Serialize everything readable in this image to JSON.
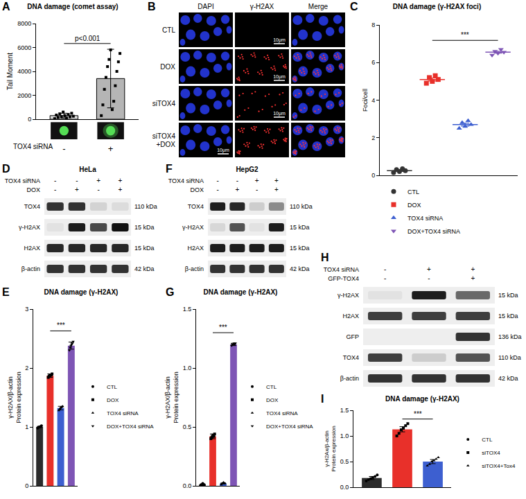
{
  "chart_data": [
    {
      "panel": "A",
      "type": "bar",
      "title": "DNA damage (comet assay)",
      "ylabel": "Tail Moment",
      "x_label": "TOX4 siRNA",
      "categories": [
        "-",
        "+"
      ],
      "values": [
        300,
        3400
      ],
      "errors": [
        200,
        2450
      ],
      "points": [
        [
          50,
          100,
          150,
          200,
          220,
          250,
          300,
          350,
          400,
          450,
          500,
          600
        ],
        [
          300,
          800,
          1200,
          1500,
          2500,
          2800,
          3500,
          4000,
          4400,
          4800,
          5000,
          5500,
          5800
        ]
      ],
      "colors": [
        "#d9d9d9",
        "#b5b5b5"
      ],
      "marker": "square",
      "ylim": [
        0,
        8000
      ],
      "yticks": [
        0,
        2000,
        4000,
        6000,
        8000
      ],
      "grid": false,
      "annotations": [
        {
          "text": "p<0.001",
          "from": "-",
          "to": "+"
        }
      ]
    },
    {
      "panel": "C",
      "type": "scatter",
      "title": "DNA damage (γ-H2AX foci)",
      "ylabel": "Foci/cell",
      "ylim": [
        0,
        8
      ],
      "yticks": [
        0,
        2,
        4,
        6,
        8
      ],
      "tick_labels": "y",
      "grid": false,
      "legend": "bottom left",
      "series": [
        {
          "name": "CTL",
          "color": "#333333",
          "marker": "circle",
          "values": [
            0.15,
            0.2,
            0.25,
            0.3,
            0.35
          ],
          "mean": 0.25,
          "error": 0.04
        },
        {
          "name": "DOX",
          "color": "#e8302a",
          "marker": "square",
          "values": [
            4.9,
            5.0,
            5.1,
            5.2,
            5.3
          ],
          "mean": 5.1,
          "error": 0.08
        },
        {
          "name": "TOX4 siRNA",
          "color": "#3d5fd0",
          "marker": "triangle-up",
          "values": [
            2.5,
            2.6,
            2.7,
            2.8,
            2.9
          ],
          "mean": 2.7,
          "error": 0.08
        },
        {
          "name": "DOX+TOX4 siRNA",
          "color": "#7e55b5",
          "marker": "triangle-down",
          "values": [
            6.4,
            6.5,
            6.55,
            6.6,
            6.7
          ],
          "mean": 6.55,
          "error": 0.05
        }
      ],
      "annotations": [
        {
          "text": "***",
          "from": "DOX",
          "to": "DOX+TOX4 siRNA"
        }
      ]
    },
    {
      "panel": "E",
      "type": "bar",
      "title": "DNA damage (γ-H2AX)",
      "ylabel": [
        "γ-H2AX/β-actin",
        "Protein expression"
      ],
      "ylim": [
        0,
        3
      ],
      "yticks": [
        0,
        1,
        2,
        3
      ],
      "tick_labels": "y",
      "grid": false,
      "legend": "right",
      "series": [
        {
          "name": "CTL",
          "color": "#2b2b2b",
          "marker": "circle",
          "value": 1.0,
          "error": 0.01,
          "points": [
            0.98,
            0.99,
            1.0,
            1.0,
            1.01,
            1.02
          ]
        },
        {
          "name": "DOX",
          "color": "#e8302a",
          "marker": "square",
          "value": 1.87,
          "error": 0.03,
          "points": [
            1.84,
            1.86,
            1.87,
            1.88,
            1.88,
            1.9
          ]
        },
        {
          "name": "TOX4 siRNA",
          "color": "#3d5fd0",
          "marker": "triangle-up",
          "value": 1.32,
          "error": 0.03,
          "points": [
            1.28,
            1.3,
            1.32,
            1.33,
            1.34,
            1.35
          ]
        },
        {
          "name": "DOX+TOX4 siRNA",
          "color": "#7e55b5",
          "marker": "triangle-down",
          "value": 2.38,
          "error": 0.06,
          "points": [
            2.3,
            2.35,
            2.38,
            2.4,
            2.42,
            2.45
          ]
        }
      ],
      "annotations": [
        {
          "text": "***",
          "from": "DOX",
          "to": "DOX+TOX4 siRNA"
        }
      ]
    },
    {
      "panel": "G",
      "type": "bar",
      "title": "DNA damage (γ-H2AX)",
      "ylabel": [
        "γ-H2AX/β-actin",
        "Protein expression"
      ],
      "ylim": [
        0,
        1.5
      ],
      "yticks": [
        {
          "value": 0,
          "label": "0.0"
        },
        0.5,
        {
          "value": 1,
          "label": "1.0"
        },
        1.5
      ],
      "tick_labels": "y",
      "grid": false,
      "legend": "right",
      "series": [
        {
          "name": "CTL",
          "color": "#2b2b2b",
          "marker": "circle",
          "value": 0.01,
          "error": 0.003,
          "points": [
            0,
            0.01,
            0.01,
            0.02,
            0.01,
            0.01
          ]
        },
        {
          "name": "DOX",
          "color": "#e8302a",
          "marker": "square",
          "value": 0.42,
          "error": 0.02,
          "points": [
            0.4,
            0.41,
            0.42,
            0.43,
            0.42,
            0.44
          ]
        },
        {
          "name": "TOX4 siRNA",
          "color": "#3d5fd0",
          "marker": "triangle-up",
          "value": 0.02,
          "error": 0.003,
          "points": [
            0.01,
            0.02,
            0.02,
            0.03,
            0.02,
            0.02
          ]
        },
        {
          "name": "DOX+TOX4 siRNA",
          "color": "#7e55b5",
          "marker": "triangle-down",
          "value": 1.2,
          "error": 0.01,
          "points": [
            1.19,
            1.2,
            1.2,
            1.21,
            1.2,
            1.21
          ]
        }
      ],
      "annotations": [
        {
          "text": "***",
          "from": "DOX",
          "to": "DOX+TOX4 siRNA"
        }
      ]
    },
    {
      "panel": "I",
      "type": "bar",
      "title": "DNA damage (γ-H2AX)",
      "ylabel": [
        "γ-H2Ax/β-actin",
        "Protein expression"
      ],
      "ylim": [
        0,
        1.5
      ],
      "yticks": [
        {
          "value": 0,
          "label": "0.0"
        },
        0.5,
        {
          "value": 1,
          "label": "1.0"
        },
        1.5
      ],
      "tick_labels": "y",
      "grid": false,
      "legend": "right",
      "series": [
        {
          "name": "CTL",
          "color": "#2b2b2b",
          "marker": "circle",
          "value": 0.18,
          "error": 0.03,
          "points": [
            0.12,
            0.15,
            0.17,
            0.19,
            0.21,
            0.24
          ]
        },
        {
          "name": "siTOX4",
          "color": "#e8302a",
          "marker": "square",
          "value": 1.13,
          "error": 0.05,
          "points": [
            1.0,
            1.05,
            1.12,
            1.15,
            1.2,
            1.24
          ]
        },
        {
          "name": "siTOX4+Tox4",
          "color": "#3d5fd0",
          "marker": "triangle-up",
          "value": 0.5,
          "error": 0.04,
          "points": [
            0.42,
            0.45,
            0.5,
            0.52,
            0.55,
            0.58
          ]
        }
      ],
      "annotations": [
        {
          "text": "***",
          "from": "siTOX4",
          "to": "siTOX4+Tox4"
        }
      ]
    }
  ],
  "images": {
    "panel": "B",
    "columns": [
      "DAPI",
      "γ-H2AX",
      "Merge"
    ],
    "rows": [
      "CTL",
      "DOX",
      "siTOX4",
      "siTOX4 +DOX"
    ],
    "scale_bar": "10μm"
  },
  "blots": [
    {
      "panel": "D",
      "title": "HeLa",
      "conditions": [
        {
          "label": "TOX4 siRNA",
          "signs": [
            "-",
            "-",
            "+",
            "+"
          ]
        },
        {
          "label": "DOX",
          "signs": [
            "-",
            "+",
            "-",
            "+"
          ]
        }
      ],
      "bands": [
        {
          "name": "TOX4",
          "size": "110 kDa",
          "intensity": [
            0.85,
            0.85,
            0.12,
            0.08
          ]
        },
        {
          "name": "γ-H2AX",
          "size": "15 kDa",
          "intensity": [
            0.05,
            0.95,
            0.75,
            1.0
          ]
        },
        {
          "name": "H2AX",
          "size": "15 kDa",
          "intensity": [
            0.9,
            0.9,
            0.9,
            0.9
          ]
        },
        {
          "name": "β-actin",
          "size": "42 kDa",
          "intensity": [
            0.85,
            0.85,
            0.85,
            0.85
          ]
        }
      ]
    },
    {
      "panel": "F",
      "title": "HepG2",
      "conditions": [
        {
          "label": "TOX4 siRNA",
          "signs": [
            "-",
            "-",
            "+",
            "+"
          ]
        },
        {
          "label": "DOX",
          "signs": [
            "-",
            "+",
            "-",
            "+"
          ]
        }
      ],
      "bands": [
        {
          "name": "TOX4",
          "size": "110 kDa",
          "intensity": [
            0.95,
            0.9,
            0.15,
            0.45
          ]
        },
        {
          "name": "γ-H2AX",
          "size": "15 kDa",
          "intensity": [
            0.1,
            0.7,
            0.05,
            0.95
          ]
        },
        {
          "name": "H2AX",
          "size": "15 kDa",
          "intensity": [
            0.95,
            0.95,
            0.95,
            0.95
          ]
        },
        {
          "name": "β-actin",
          "size": "42 kDa",
          "intensity": [
            0.85,
            0.85,
            0.85,
            0.85
          ]
        }
      ]
    },
    {
      "panel": "H",
      "conditions": [
        {
          "label": "TOX4 siRNA",
          "signs": [
            "-",
            "+",
            "+"
          ]
        },
        {
          "label": "GFP-TOX4",
          "signs": [
            "-",
            "-",
            "+"
          ]
        }
      ],
      "bands": [
        {
          "name": "γ-H2AX",
          "size": "15 kDa",
          "intensity": [
            0.05,
            0.95,
            0.6
          ]
        },
        {
          "name": "H2AX",
          "size": "15 kDa",
          "intensity": [
            0.8,
            0.8,
            0.8
          ]
        },
        {
          "name": "GFP",
          "size": "136 kDa",
          "intensity": [
            0,
            0,
            0.85
          ]
        },
        {
          "name": "TOX4",
          "size": "110 kDa",
          "intensity": [
            0.8,
            0.15,
            0.7
          ]
        },
        {
          "name": "β-actin",
          "size": "42 kDa",
          "intensity": [
            0.85,
            0.85,
            0.85
          ]
        }
      ]
    }
  ]
}
